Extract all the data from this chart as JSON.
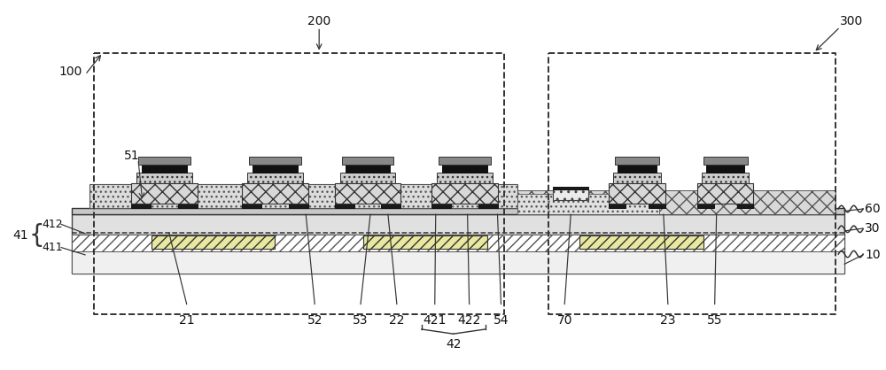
{
  "fig_width": 10.0,
  "fig_height": 4.18,
  "bg_color": "#ffffff",
  "line_color": "#000000",
  "fs": 10
}
